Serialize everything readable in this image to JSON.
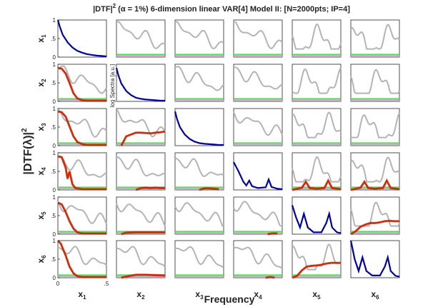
{
  "chart_data": {
    "type": "line",
    "title_prefix": "|DTF|",
    "title_sup": "2",
    "title_rest": " (α = 1%) 6-dimension linear VAR[4] Model II: [N=2000pts; IP=4]",
    "xlabel": "Frequency",
    "ylabel_main": "|DTF(λ)|",
    "ylabel_sup": "2",
    "inset_label": "log Spectra [a.u.]",
    "row_labels": [
      "x",
      "x",
      "x",
      "x",
      "x",
      "x"
    ],
    "row_subs": [
      "1",
      "2",
      "3",
      "4",
      "5",
      "6"
    ],
    "col_labels": [
      "x",
      "x",
      "x",
      "x",
      "x",
      "x"
    ],
    "col_subs": [
      "1",
      "2",
      "3",
      "4",
      "5",
      "6"
    ],
    "ytick_labels": [
      "0",
      ".5",
      "1"
    ],
    "xtick_labels": [
      "0",
      ".5"
    ],
    "ylim": [
      0,
      1
    ],
    "xlim": [
      0,
      0.5
    ],
    "colors": {
      "spectrum": "#00009a",
      "dtf": "#d42800",
      "spectra": "#b4b4b4",
      "threshold_band": "#4ade4a",
      "null_band": "#c09ac8",
      "gray_line": "#909090"
    },
    "series_notes": "gray = spectra, red = significant DTF, blue = auto-spectrum (diagonal)",
    "diagonal": {
      "1": [
        [
          0,
          1.0
        ],
        [
          0.02,
          0.82
        ],
        [
          0.05,
          0.6
        ],
        [
          0.1,
          0.4
        ],
        [
          0.15,
          0.26
        ],
        [
          0.2,
          0.17
        ],
        [
          0.25,
          0.12
        ],
        [
          0.3,
          0.08
        ],
        [
          0.35,
          0.06
        ],
        [
          0.4,
          0.04
        ],
        [
          0.45,
          0.03
        ],
        [
          0.5,
          0.02
        ]
      ],
      "2": [
        [
          0,
          0.9
        ],
        [
          0.02,
          0.7
        ],
        [
          0.05,
          0.48
        ],
        [
          0.1,
          0.28
        ],
        [
          0.15,
          0.17
        ],
        [
          0.2,
          0.1
        ],
        [
          0.25,
          0.07
        ],
        [
          0.3,
          0.05
        ],
        [
          0.35,
          0.04
        ],
        [
          0.4,
          0.03
        ],
        [
          0.45,
          0.02
        ],
        [
          0.5,
          0.02
        ]
      ],
      "3": [
        [
          0,
          0.92
        ],
        [
          0.02,
          0.72
        ],
        [
          0.05,
          0.5
        ],
        [
          0.1,
          0.3
        ],
        [
          0.15,
          0.18
        ],
        [
          0.2,
          0.11
        ],
        [
          0.25,
          0.07
        ],
        [
          0.3,
          0.05
        ],
        [
          0.35,
          0.04
        ],
        [
          0.4,
          0.03
        ],
        [
          0.45,
          0.02
        ],
        [
          0.5,
          0.02
        ]
      ],
      "4": [
        [
          0,
          0.75
        ],
        [
          0.05,
          0.5
        ],
        [
          0.1,
          0.22
        ],
        [
          0.13,
          0.12
        ],
        [
          0.16,
          0.25
        ],
        [
          0.19,
          0.1
        ],
        [
          0.25,
          0.05
        ],
        [
          0.33,
          0.07
        ],
        [
          0.36,
          0.28
        ],
        [
          0.39,
          0.08
        ],
        [
          0.45,
          0.03
        ],
        [
          0.5,
          0.02
        ]
      ],
      "5": [
        [
          0,
          0.78
        ],
        [
          0.04,
          0.45
        ],
        [
          0.08,
          0.18
        ],
        [
          0.12,
          0.55
        ],
        [
          0.16,
          0.18
        ],
        [
          0.22,
          0.05
        ],
        [
          0.3,
          0.05
        ],
        [
          0.35,
          0.3
        ],
        [
          0.38,
          0.55
        ],
        [
          0.41,
          0.18
        ],
        [
          0.46,
          0.05
        ],
        [
          0.5,
          0.03
        ]
      ],
      "6": [
        [
          0,
          1.0
        ],
        [
          0.04,
          0.5
        ],
        [
          0.08,
          0.18
        ],
        [
          0.12,
          0.55
        ],
        [
          0.16,
          0.18
        ],
        [
          0.22,
          0.06
        ],
        [
          0.3,
          0.06
        ],
        [
          0.35,
          0.3
        ],
        [
          0.38,
          0.55
        ],
        [
          0.41,
          0.18
        ],
        [
          0.46,
          0.05
        ],
        [
          0.5,
          0.03
        ]
      ]
    },
    "red_lines": {
      "2-1": [
        [
          0,
          0.9
        ],
        [
          0.04,
          0.88
        ],
        [
          0.08,
          0.75
        ],
        [
          0.12,
          0.5
        ],
        [
          0.16,
          0.22
        ],
        [
          0.2,
          0.08
        ],
        [
          0.25,
          0.03
        ],
        [
          0.3,
          0.02
        ],
        [
          0.5,
          0.02
        ]
      ],
      "3-1": [
        [
          0,
          0.92
        ],
        [
          0.04,
          0.9
        ],
        [
          0.08,
          0.78
        ],
        [
          0.12,
          0.52
        ],
        [
          0.16,
          0.25
        ],
        [
          0.2,
          0.1
        ],
        [
          0.25,
          0.04
        ],
        [
          0.3,
          0.02
        ],
        [
          0.5,
          0.02
        ]
      ],
      "4-1": [
        [
          0,
          0.9
        ],
        [
          0.04,
          0.88
        ],
        [
          0.08,
          0.6
        ],
        [
          0.1,
          0.3
        ],
        [
          0.12,
          0.5
        ],
        [
          0.15,
          0.15
        ],
        [
          0.18,
          0.05
        ],
        [
          0.25,
          0.02
        ],
        [
          0.5,
          0.02
        ]
      ],
      "5-1": [
        [
          0,
          0.85
        ],
        [
          0.04,
          0.8
        ],
        [
          0.08,
          0.6
        ],
        [
          0.12,
          0.35
        ],
        [
          0.16,
          0.15
        ],
        [
          0.2,
          0.05
        ],
        [
          0.25,
          0.02
        ],
        [
          0.5,
          0.02
        ]
      ],
      "6-1": [
        [
          0,
          1.0
        ],
        [
          0.03,
          0.92
        ],
        [
          0.08,
          0.6
        ],
        [
          0.12,
          0.3
        ],
        [
          0.16,
          0.12
        ],
        [
          0.2,
          0.04
        ],
        [
          0.25,
          0.02
        ],
        [
          0.5,
          0.02
        ]
      ],
      "3-2": [
        [
          0.05,
          0.0
        ],
        [
          0.1,
          0.25
        ],
        [
          0.15,
          0.3
        ],
        [
          0.2,
          0.35
        ],
        [
          0.25,
          0.35
        ],
        [
          0.3,
          0.34
        ],
        [
          0.35,
          0.33
        ],
        [
          0.4,
          0.35
        ],
        [
          0.45,
          0.36
        ],
        [
          0.5,
          0.38
        ]
      ],
      "4-2": [
        [
          0.2,
          0.0
        ],
        [
          0.25,
          0.05
        ],
        [
          0.3,
          0.06
        ],
        [
          0.35,
          0.05
        ],
        [
          0.4,
          0.06
        ],
        [
          0.45,
          0.05
        ],
        [
          0.5,
          0.05
        ]
      ],
      "5-2": [
        [
          0.05,
          0.0
        ],
        [
          0.1,
          0.04
        ],
        [
          0.2,
          0.05
        ],
        [
          0.3,
          0.05
        ],
        [
          0.4,
          0.05
        ],
        [
          0.5,
          0.05
        ]
      ],
      "6-2": [
        [
          0.05,
          0.0
        ],
        [
          0.1,
          0.03
        ],
        [
          0.2,
          0.08
        ],
        [
          0.3,
          0.08
        ],
        [
          0.4,
          0.07
        ],
        [
          0.5,
          0.06
        ]
      ],
      "5-4": [
        [
          0.35,
          0.0
        ],
        [
          0.4,
          0.02
        ],
        [
          0.45,
          0.02
        ]
      ],
      "6-4": [
        [
          0.33,
          0.0
        ],
        [
          0.38,
          0.02
        ],
        [
          0.42,
          0.0
        ]
      ],
      "4-5": [
        [
          0.0,
          0.0
        ],
        [
          0.05,
          0.03
        ],
        [
          0.1,
          0.06
        ],
        [
          0.14,
          0.22
        ],
        [
          0.18,
          0.05
        ],
        [
          0.25,
          0.03
        ],
        [
          0.33,
          0.05
        ],
        [
          0.37,
          0.25
        ],
        [
          0.41,
          0.05
        ],
        [
          0.5,
          0.02
        ]
      ],
      "4-6": [
        [
          0.0,
          0.0
        ],
        [
          0.05,
          0.03
        ],
        [
          0.1,
          0.06
        ],
        [
          0.14,
          0.22
        ],
        [
          0.18,
          0.05
        ],
        [
          0.25,
          0.03
        ],
        [
          0.33,
          0.05
        ],
        [
          0.37,
          0.25
        ],
        [
          0.41,
          0.05
        ],
        [
          0.5,
          0.02
        ]
      ],
      "6-5": [
        [
          0.0,
          0.0
        ],
        [
          0.05,
          0.05
        ],
        [
          0.1,
          0.2
        ],
        [
          0.15,
          0.3
        ],
        [
          0.2,
          0.32
        ],
        [
          0.25,
          0.33
        ],
        [
          0.3,
          0.35
        ],
        [
          0.35,
          0.38
        ],
        [
          0.4,
          0.4
        ],
        [
          0.45,
          0.4
        ],
        [
          0.5,
          0.4
        ]
      ],
      "5-6": [
        [
          0.0,
          0.0
        ],
        [
          0.05,
          0.08
        ],
        [
          0.1,
          0.2
        ],
        [
          0.15,
          0.26
        ],
        [
          0.2,
          0.3
        ],
        [
          0.25,
          0.3
        ],
        [
          0.3,
          0.32
        ],
        [
          0.35,
          0.35
        ],
        [
          0.4,
          0.36
        ],
        [
          0.45,
          0.35
        ],
        [
          0.5,
          0.35
        ]
      ],
      "4-3": [
        [
          0.25,
          0.0
        ],
        [
          0.3,
          0.04
        ],
        [
          0.35,
          0.04
        ],
        [
          0.4,
          0.03
        ],
        [
          0.45,
          0.02
        ]
      ]
    }
  }
}
